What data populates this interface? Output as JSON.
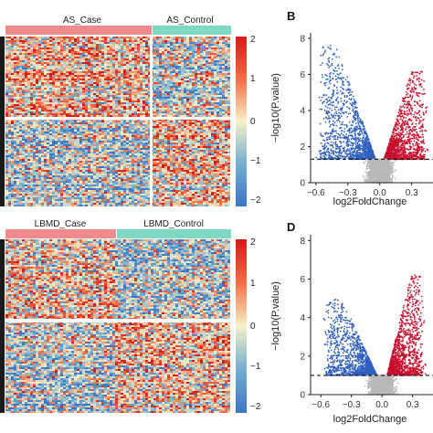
{
  "colors": {
    "case_bar": "#f08a8c",
    "control_bar": "#7fd9c2",
    "heat_low": "#3b76c4",
    "heat_mid": "#f5f0c8",
    "heat_high": "#d7191c",
    "up_points": "#c8102e",
    "down_points": "#2f5fbf",
    "ns_points": "#b8b8b8"
  },
  "heatmap_top": {
    "groups": [
      "AS_Case",
      "AS_Control"
    ],
    "colorbar_ticks": [
      "2",
      "1",
      "0",
      "−1",
      "−2"
    ]
  },
  "heatmap_bottom": {
    "groups": [
      "LBMD_Case",
      "LBMD_Control"
    ],
    "colorbar_ticks": [
      "2",
      "1",
      "0",
      "−1",
      "−2"
    ]
  },
  "chart_data": [
    {
      "type": "scatter",
      "panel_label": "B",
      "xlabel": "log2FoldChange",
      "ylabel": "−log10(P.value)",
      "xlim": [
        -0.65,
        0.5
      ],
      "ylim": [
        0,
        8.3
      ],
      "x_ticks": [
        "−0.6",
        "−0.3",
        "0.0",
        "0.3"
      ],
      "y_ticks": [
        "0",
        "2",
        "4",
        "6",
        "8"
      ],
      "threshold_y": 1.3,
      "series": [
        {
          "color": "#2f5fbf",
          "x_range": [
            -0.62,
            -0.04
          ],
          "y_range": [
            1.3,
            7.6
          ]
        },
        {
          "color": "#c8102e",
          "x_range": [
            0.04,
            0.45
          ],
          "y_range": [
            1.3,
            6.2
          ]
        },
        {
          "color": "#b8b8b8",
          "x_range": [
            -0.15,
            0.15
          ],
          "y_range": [
            0,
            1.3
          ]
        }
      ]
    },
    {
      "type": "scatter",
      "panel_label": "D",
      "xlabel": "log2FoldChange",
      "ylabel": "−log10(P.value)",
      "xlim": [
        -0.7,
        0.5
      ],
      "ylim": [
        0,
        8.3
      ],
      "x_ticks": [
        "−0.6",
        "−0.3",
        "0.0",
        "0.3"
      ],
      "y_ticks": [
        "0",
        "2",
        "4",
        "6",
        "8"
      ],
      "threshold_y": 1.0,
      "series": [
        {
          "color": "#2f5fbf",
          "x_range": [
            -0.6,
            -0.05
          ],
          "y_range": [
            1.0,
            5.0
          ]
        },
        {
          "color": "#c8102e",
          "x_range": [
            0.05,
            0.42
          ],
          "y_range": [
            1.0,
            6.2
          ]
        },
        {
          "color": "#b8b8b8",
          "x_range": [
            -0.15,
            0.15
          ],
          "y_range": [
            0,
            1.0
          ]
        }
      ]
    }
  ]
}
